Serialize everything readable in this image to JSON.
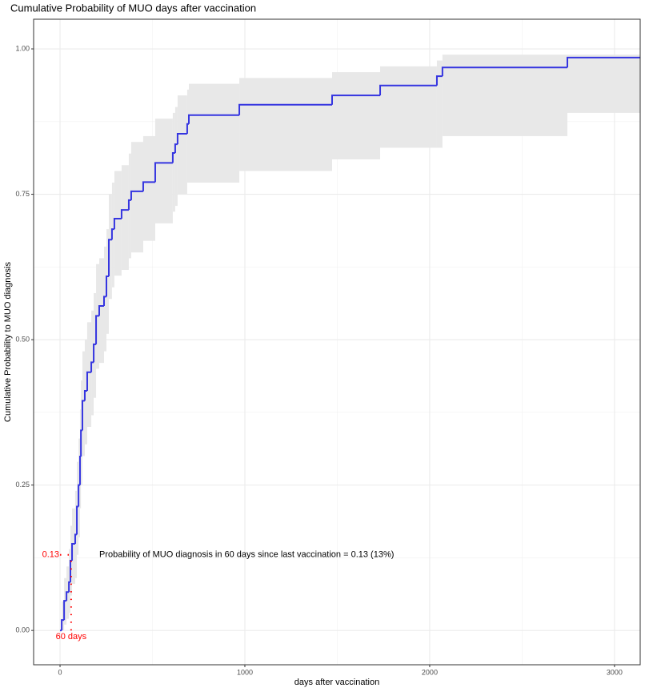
{
  "chart_data": {
    "type": "step",
    "title": "Cumulative Probability of MUO days after vaccination",
    "x_label": "days after vaccination",
    "y_label": "Cumulative Probability to MUO diagnosis",
    "xlim": [
      -143,
      3139
    ],
    "ylim": [
      -0.059,
      1.051
    ],
    "xticks": [
      0,
      1000,
      2000,
      3000
    ],
    "yticks": [
      {
        "value": 0,
        "label": "0.00"
      },
      0.25,
      {
        "value": 0.5,
        "label": "0.50"
      },
      0.75,
      {
        "value": 1,
        "label": "1.00"
      }
    ],
    "x_minor_grid": [
      500,
      1500,
      2500
    ],
    "y_minor_grid": [
      0.125,
      0.375,
      0.625,
      0.875
    ],
    "grid": true,
    "band_color": "#e8e8e8",
    "series": [
      {
        "color": "#3535e0",
        "x": [
          0,
          9,
          22,
          35,
          48,
          56,
          65,
          82,
          91,
          100,
          108,
          113,
          121,
          134,
          147,
          169,
          182,
          195,
          212,
          238,
          251,
          264,
          281,
          294,
          333,
          372,
          385,
          450,
          515,
          610,
          623,
          636,
          688,
          697,
          970,
          1472,
          1732,
          2039,
          2069,
          2745
        ],
        "y": [
          0,
          0.018,
          0.051,
          0.066,
          0.083,
          0.12,
          0.149,
          0.165,
          0.213,
          0.25,
          0.299,
          0.344,
          0.395,
          0.412,
          0.444,
          0.461,
          0.492,
          0.541,
          0.558,
          0.574,
          0.609,
          0.672,
          0.69,
          0.708,
          0.723,
          0.74,
          0.755,
          0.771,
          0.804,
          0.821,
          0.836,
          0.854,
          0.871,
          0.886,
          0.904,
          0.92,
          0.937,
          0.953,
          0.968,
          0.985
        ],
        "lower": [
          0,
          0,
          0.01,
          0.02,
          0.03,
          0.06,
          0.08,
          0.09,
          0.13,
          0.16,
          0.21,
          0.25,
          0.3,
          0.32,
          0.35,
          0.37,
          0.4,
          0.45,
          0.46,
          0.48,
          0.51,
          0.57,
          0.59,
          0.61,
          0.62,
          0.64,
          0.65,
          0.67,
          0.7,
          0.72,
          0.73,
          0.75,
          0.77,
          0.77,
          0.79,
          0.81,
          0.83,
          0.83,
          0.85,
          0.89
        ],
        "upper": [
          0,
          0.05,
          0.09,
          0.11,
          0.14,
          0.18,
          0.21,
          0.24,
          0.29,
          0.33,
          0.38,
          0.43,
          0.48,
          0.5,
          0.53,
          0.55,
          0.58,
          0.63,
          0.64,
          0.66,
          0.69,
          0.75,
          0.77,
          0.79,
          0.8,
          0.82,
          0.84,
          0.85,
          0.88,
          0.89,
          0.9,
          0.92,
          0.93,
          0.94,
          0.95,
          0.96,
          0.97,
          0.98,
          0.99,
          0.99
        ]
      }
    ],
    "reference": {
      "x": {
        "value": 60,
        "label": "60 days"
      },
      "y": 0.13,
      "color": "#ff0000",
      "annotation": "Probability of MUO diagnosis in 60 days since last vaccination = 0.13 (13%)"
    }
  }
}
